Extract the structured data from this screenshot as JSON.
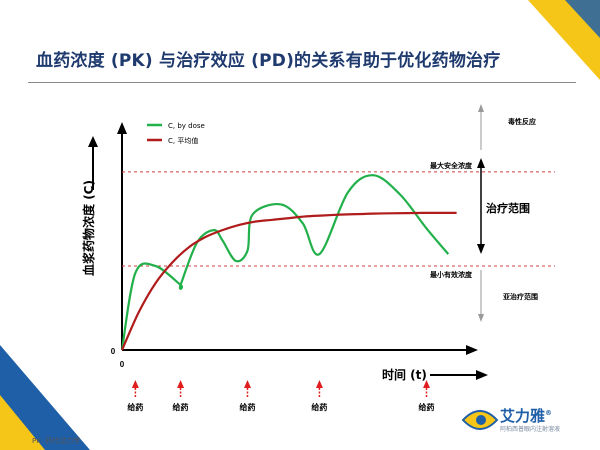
{
  "title": "血药浓度 (PK) 与治疗效应 (PD)的关系有助于优化药物治疗",
  "footer": "PK: 药代动力学",
  "logo": {
    "name": "艾力雅",
    "mark": "®",
    "subtitle": "阿柏西普眼内注射溶液"
  },
  "colors": {
    "title": "#1f3a6e",
    "dose_curve": "#22b04a",
    "avg_curve": "#b01c1c",
    "threshold": "#d04040",
    "arrow": "#e01e1e",
    "accent_yellow": "#f5c518",
    "accent_blue": "#1f5fa8"
  },
  "chart_data": {
    "type": "line",
    "ylabel": "血浆药物浓度 (C)",
    "xlabel": "时间 (t)",
    "origin_x_label": "0",
    "origin_y_label": "0",
    "legend": [
      {
        "label": "C, by dose",
        "color": "#22b04a"
      },
      {
        "label": "C, 平均值",
        "color": "#b01c1c"
      }
    ],
    "series": [
      {
        "name": "C, by dose",
        "x": [
          0.0,
          0.8,
          2.0,
          3.5,
          3.5,
          4.5,
          5.5,
          6.0,
          6.8,
          7.5,
          7.8,
          9.5,
          10.8,
          11.8,
          13.5,
          15.0,
          16.6,
          18.2,
          19.5
        ],
        "y": [
          0,
          45,
          49,
          38,
          38,
          63,
          70,
          64,
          52,
          58,
          79,
          85,
          74,
          56,
          92,
          102,
          91,
          71,
          56
        ]
      },
      {
        "name": "C, 平均值",
        "x": [
          0,
          1,
          2,
          3,
          4,
          5,
          6,
          7,
          8,
          9,
          10,
          11,
          12,
          13,
          14,
          15,
          16,
          17,
          18,
          19,
          20
        ],
        "y": [
          0,
          22,
          39,
          51,
          60,
          66,
          70,
          73,
          75,
          76,
          77,
          78,
          78.5,
          79,
          79.3,
          79.6,
          79.8,
          79.9,
          80,
          80,
          80
        ]
      }
    ],
    "doses_x": [
      0.8,
      3.5,
      7.5,
      11.8,
      18.2
    ],
    "dose_label": "给药",
    "thresholds": [
      {
        "label": "最大安全浓度",
        "y": 104
      },
      {
        "label": "最小有效浓度",
        "y": 49
      }
    ],
    "zones": {
      "toxic": "毒性反应",
      "therapeutic": "治疗范围",
      "subtherapeutic": "亚治疗范围"
    },
    "xlim": [
      0,
      20.5
    ],
    "ylim": [
      0,
      150
    ]
  }
}
